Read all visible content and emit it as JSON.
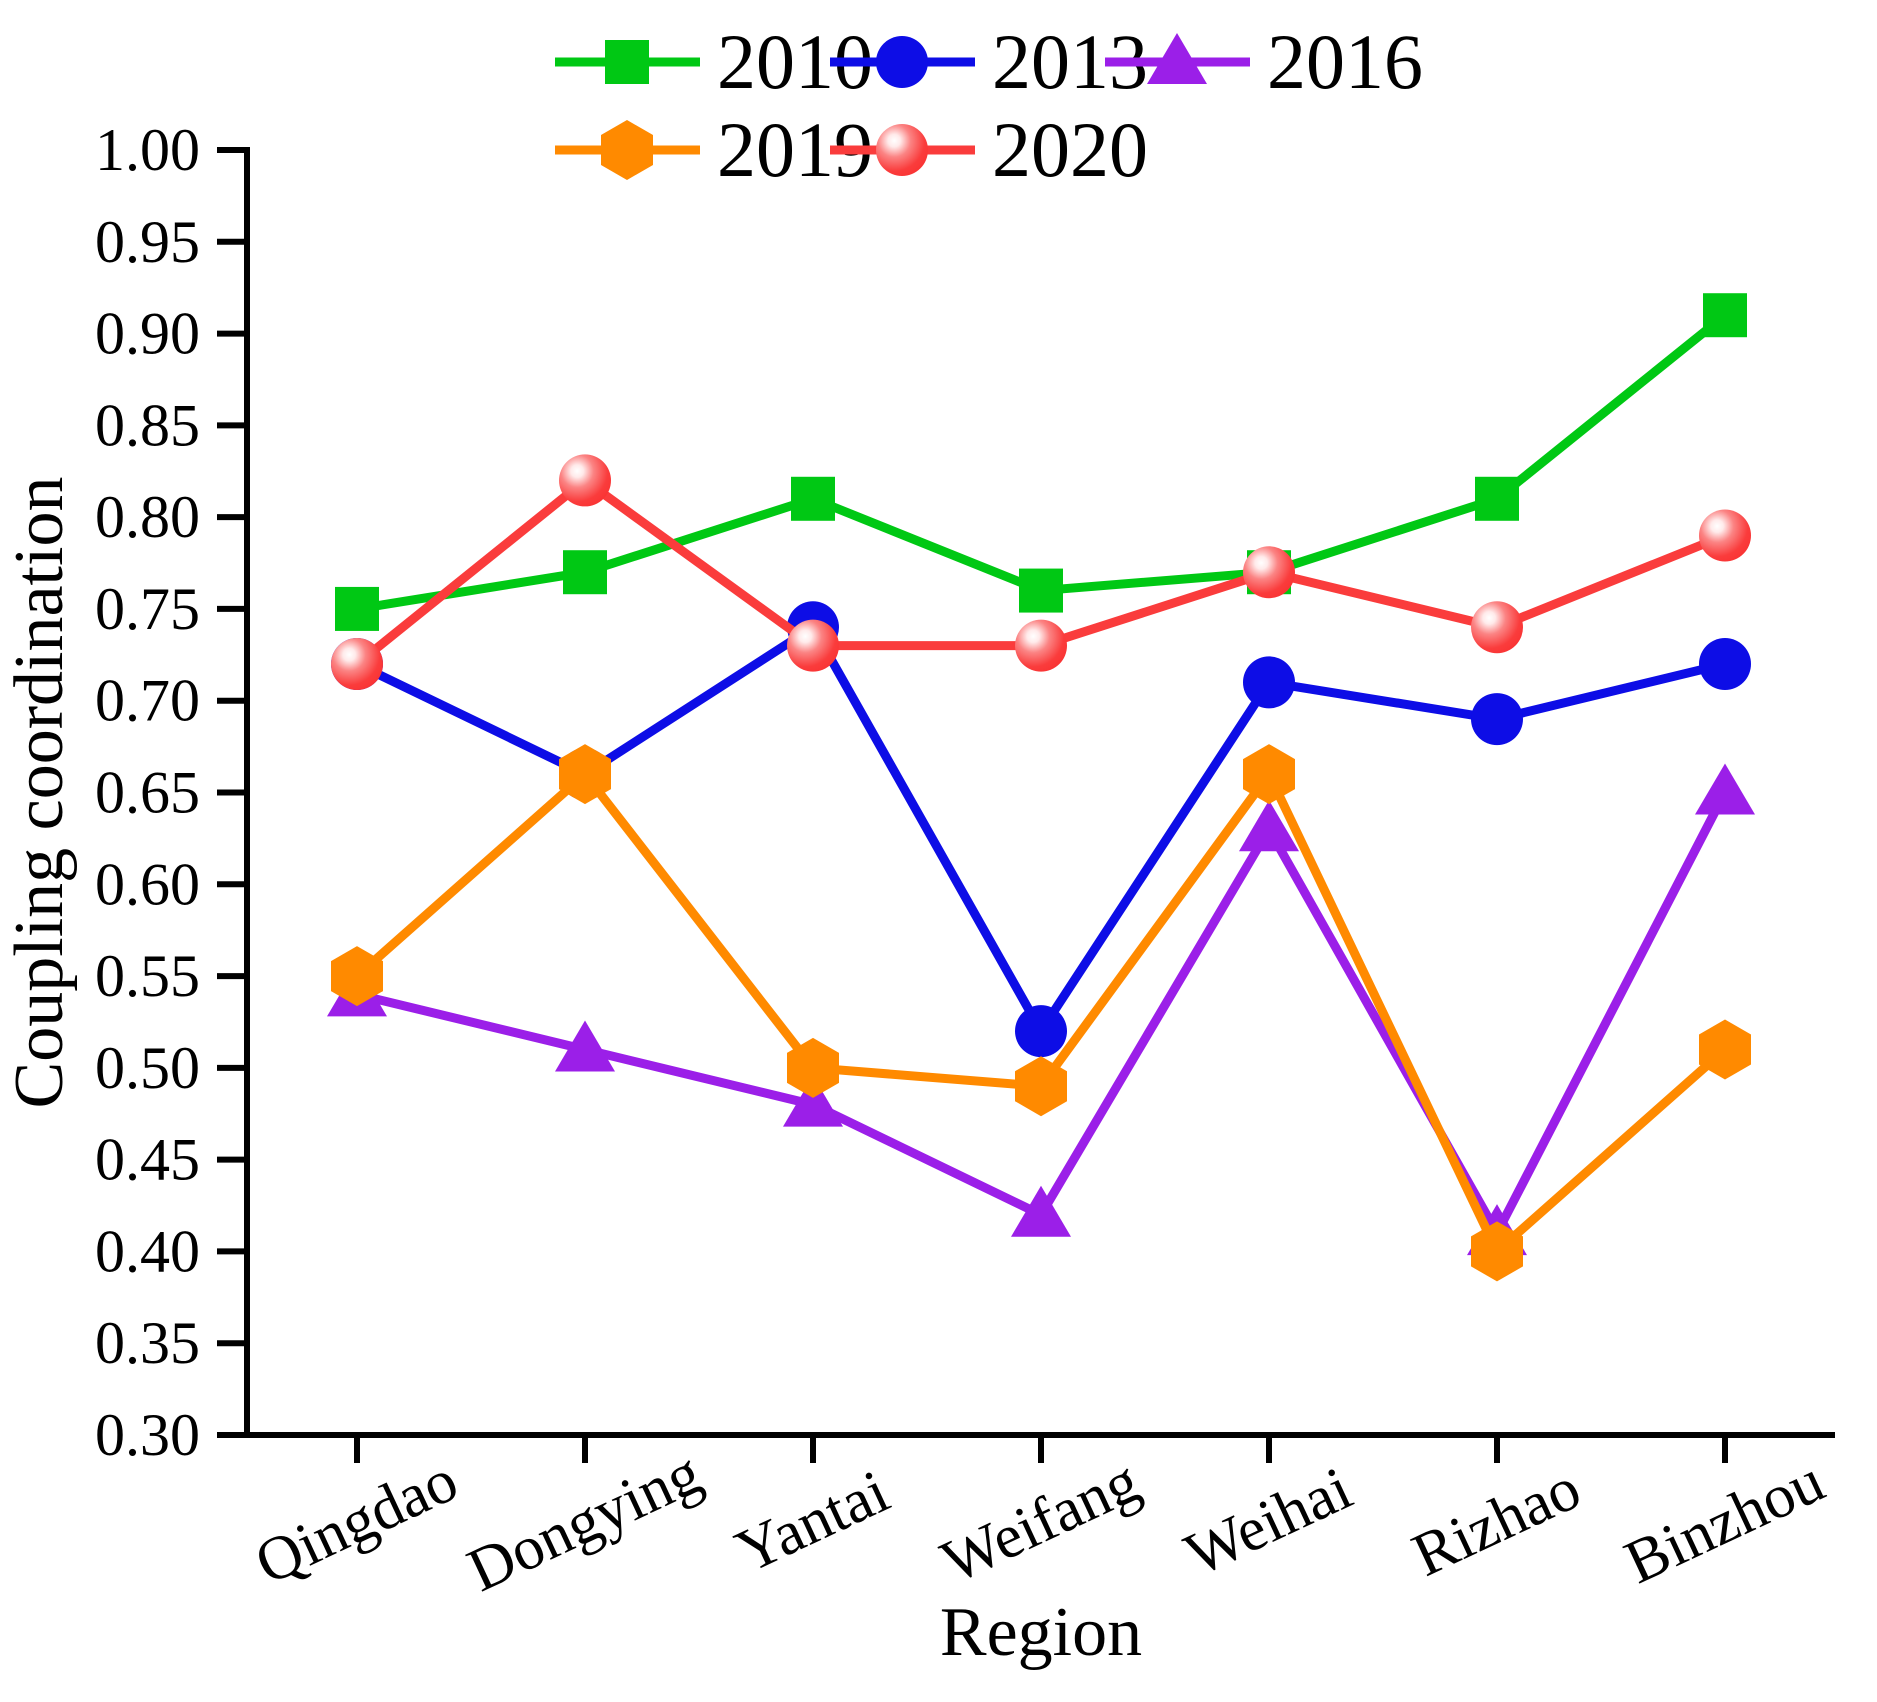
{
  "chart_data": {
    "type": "line",
    "title": "",
    "xlabel": "Region",
    "ylabel": "Coupling coordination",
    "categories": [
      "Qingdao",
      "Dongying",
      "Yantai",
      "Weifang",
      "Weihai",
      "Rizhao",
      "Binzhou"
    ],
    "ylim": [
      0.3,
      1.0
    ],
    "ytick_step": 0.05,
    "ytick_labels": [
      "1.00",
      "0.95",
      "0.90",
      "0.85",
      "0.80",
      "0.75",
      "0.70",
      "0.65",
      "0.60",
      "0.55",
      "0.50",
      "0.45",
      "0.40",
      "0.35",
      "0.30"
    ],
    "grid": false,
    "legend_position": "top-center, two rows, inside figure",
    "axis_color": "#000000",
    "series": [
      {
        "name": "2010",
        "color": "#00c814",
        "marker": "square",
        "values": [
          0.75,
          0.77,
          0.81,
          0.76,
          0.77,
          0.81,
          0.91
        ]
      },
      {
        "name": "2013",
        "color": "#0d0de6",
        "marker": "circle",
        "values": [
          0.72,
          0.66,
          0.74,
          0.52,
          0.71,
          0.69,
          0.72
        ]
      },
      {
        "name": "2016",
        "color": "#9b1fe8",
        "marker": "triangle-up",
        "values": [
          0.54,
          0.51,
          0.48,
          0.42,
          0.63,
          0.41,
          0.65
        ]
      },
      {
        "name": "2019",
        "color": "#ff8a00",
        "marker": "hexagon",
        "values": [
          0.55,
          0.66,
          0.5,
          0.49,
          0.66,
          0.4,
          0.51
        ]
      },
      {
        "name": "2020",
        "color": "#fa3c3c",
        "marker": "sphere",
        "values": [
          0.72,
          0.82,
          0.73,
          0.73,
          0.77,
          0.74,
          0.79
        ]
      }
    ]
  }
}
